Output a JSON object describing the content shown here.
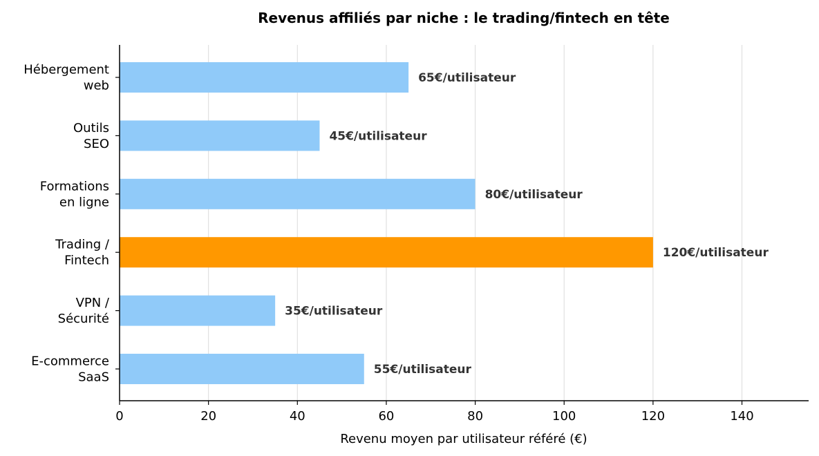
{
  "chart_data": {
    "type": "bar",
    "orientation": "horizontal",
    "title": "Revenus affiliés par niche : le trading/fintech en tête",
    "xlabel": "Revenu moyen par utilisateur référé (€)",
    "ylabel": "",
    "xlim": [
      0,
      155
    ],
    "xticks": [
      0,
      20,
      40,
      60,
      80,
      100,
      120,
      140
    ],
    "grid": "vertical",
    "categories": [
      [
        "Hébergement",
        "web"
      ],
      [
        "Outils",
        "SEO"
      ],
      [
        "Formations",
        "en ligne"
      ],
      [
        "Trading /",
        "Fintech"
      ],
      [
        "VPN /",
        "Sécurité"
      ],
      [
        "E-commerce",
        "SaaS"
      ]
    ],
    "values": [
      65,
      45,
      80,
      120,
      35,
      55
    ],
    "data_labels": [
      "65€/utilisateur",
      "45€/utilisateur",
      "80€/utilisateur",
      "120€/utilisateur",
      "35€/utilisateur",
      "55€/utilisateur"
    ],
    "highlight_index": 3,
    "colors": {
      "bar": "#90caf9",
      "highlight": "#ff9800",
      "grid": "#e0e0e0",
      "axis": "#000000",
      "data_label": "#333333"
    }
  }
}
